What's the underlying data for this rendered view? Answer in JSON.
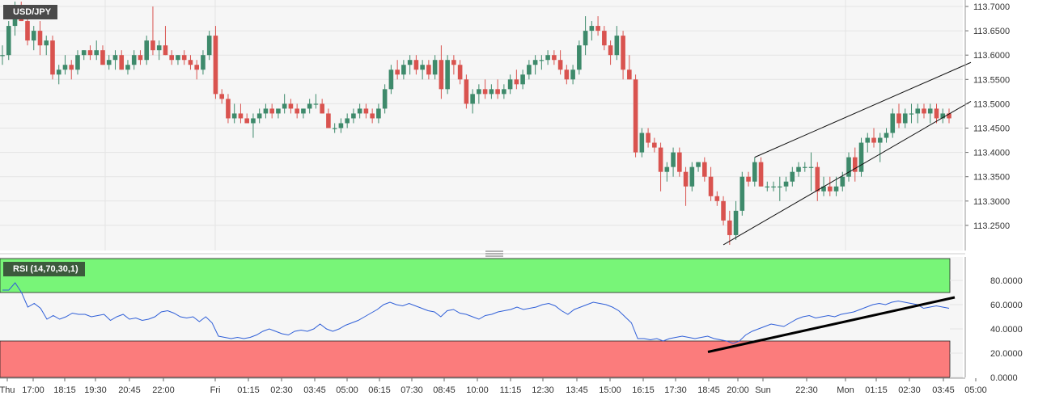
{
  "symbol": "USD/JPY",
  "rsi_label": "RSI (14,70,30,1)",
  "colors": {
    "up": "#3e8a6b",
    "down": "#d9534f",
    "rsi_line": "#2f5fd8",
    "overbought_zone": "#78f578",
    "oversold_zone": "#fb7c7c",
    "trend": "#000000",
    "grid": "#e4e4e4",
    "panel_bg": "#f6f6f6"
  },
  "chart_data": [
    {
      "type": "candlestick",
      "title": "USD/JPY",
      "ylim": [
        113.2,
        113.71
      ],
      "yticks": [
        "113.7000",
        "113.6500",
        "113.6000",
        "113.5500",
        "113.5000",
        "113.4500",
        "113.4000",
        "113.3500",
        "113.3000",
        "113.2500"
      ],
      "xticks": [
        "Thu",
        "17:00",
        "18:15",
        "19:30",
        "20:45",
        "22:00",
        "Fri",
        "01:15",
        "02:30",
        "03:45",
        "05:00",
        "06:15",
        "07:30",
        "08:45",
        "10:00",
        "11:15",
        "12:30",
        "13:45",
        "15:00",
        "16:15",
        "17:30",
        "18:45",
        "20:00",
        "Sun",
        "22:30",
        "Mon",
        "01:15",
        "02:30",
        "03:45",
        "05:00"
      ],
      "ohlc": [
        [
          113.6,
          113.62,
          113.58,
          113.6
        ],
        [
          113.6,
          113.67,
          113.59,
          113.66
        ],
        [
          113.66,
          113.71,
          113.64,
          113.7
        ],
        [
          113.7,
          113.71,
          113.67,
          113.67
        ],
        [
          113.67,
          113.69,
          113.62,
          113.63
        ],
        [
          113.63,
          113.66,
          113.61,
          113.65
        ],
        [
          113.65,
          113.67,
          113.6,
          113.62
        ],
        [
          113.62,
          113.64,
          113.6,
          113.63
        ],
        [
          113.63,
          113.64,
          113.55,
          113.56
        ],
        [
          113.56,
          113.58,
          113.54,
          113.57
        ],
        [
          113.57,
          113.6,
          113.56,
          113.58
        ],
        [
          113.58,
          113.59,
          113.55,
          113.57
        ],
        [
          113.57,
          113.61,
          113.56,
          113.6
        ],
        [
          113.6,
          113.61,
          113.59,
          113.61
        ],
        [
          113.61,
          113.62,
          113.59,
          113.6
        ],
        [
          113.6,
          113.63,
          113.59,
          113.61
        ],
        [
          113.61,
          113.62,
          113.58,
          113.58
        ],
        [
          113.58,
          113.6,
          113.57,
          113.59
        ],
        [
          113.59,
          113.61,
          113.57,
          113.6
        ],
        [
          113.6,
          113.61,
          113.57,
          113.57
        ],
        [
          113.57,
          113.59,
          113.56,
          113.58
        ],
        [
          113.58,
          113.61,
          113.57,
          113.6
        ],
        [
          113.6,
          113.61,
          113.58,
          113.59
        ],
        [
          113.59,
          113.64,
          113.58,
          113.63
        ],
        [
          113.63,
          113.7,
          113.6,
          113.61
        ],
        [
          113.61,
          113.63,
          113.59,
          113.62
        ],
        [
          113.62,
          113.66,
          113.6,
          113.6
        ],
        [
          113.6,
          113.61,
          113.58,
          113.59
        ],
        [
          113.59,
          113.6,
          113.58,
          113.6
        ],
        [
          113.6,
          113.61,
          113.58,
          113.59
        ],
        [
          113.59,
          113.6,
          113.57,
          113.58
        ],
        [
          113.58,
          113.59,
          113.55,
          113.57
        ],
        [
          113.57,
          113.61,
          113.56,
          113.6
        ],
        [
          113.6,
          113.65,
          113.59,
          113.64
        ],
        [
          113.64,
          113.66,
          113.51,
          113.52
        ],
        [
          113.52,
          113.53,
          113.5,
          113.51
        ],
        [
          113.51,
          113.52,
          113.46,
          113.47
        ],
        [
          113.47,
          113.5,
          113.46,
          113.48
        ],
        [
          113.48,
          113.5,
          113.46,
          113.47
        ],
        [
          113.47,
          113.48,
          113.46,
          113.46
        ],
        [
          113.46,
          113.48,
          113.43,
          113.47
        ],
        [
          113.47,
          113.49,
          113.46,
          113.48
        ],
        [
          113.48,
          113.5,
          113.47,
          113.49
        ],
        [
          113.49,
          113.5,
          113.47,
          113.48
        ],
        [
          113.48,
          113.49,
          113.47,
          113.49
        ],
        [
          113.49,
          113.52,
          113.48,
          113.5
        ],
        [
          113.5,
          113.51,
          113.48,
          113.49
        ],
        [
          113.49,
          113.5,
          113.47,
          113.48
        ],
        [
          113.48,
          113.49,
          113.47,
          113.49
        ],
        [
          113.49,
          113.51,
          113.48,
          113.5
        ],
        [
          113.5,
          113.52,
          113.49,
          113.5
        ],
        [
          113.5,
          113.51,
          113.48,
          113.48
        ],
        [
          113.48,
          113.49,
          113.45,
          113.45
        ],
        [
          113.45,
          113.46,
          113.44,
          113.45
        ],
        [
          113.45,
          113.47,
          113.44,
          113.46
        ],
        [
          113.46,
          113.48,
          113.45,
          113.47
        ],
        [
          113.47,
          113.49,
          113.46,
          113.48
        ],
        [
          113.48,
          113.5,
          113.47,
          113.49
        ],
        [
          113.49,
          113.5,
          113.47,
          113.48
        ],
        [
          113.48,
          113.49,
          113.46,
          113.47
        ],
        [
          113.47,
          113.5,
          113.46,
          113.49
        ],
        [
          113.49,
          113.54,
          113.48,
          113.53
        ],
        [
          113.53,
          113.58,
          113.52,
          113.57
        ],
        [
          113.57,
          113.59,
          113.55,
          113.56
        ],
        [
          113.56,
          113.59,
          113.55,
          113.58
        ],
        [
          113.58,
          113.6,
          113.56,
          113.59
        ],
        [
          113.59,
          113.6,
          113.56,
          113.57
        ],
        [
          113.57,
          113.59,
          113.55,
          113.58
        ],
        [
          113.58,
          113.59,
          113.55,
          113.56
        ],
        [
          113.56,
          113.6,
          113.55,
          113.59
        ],
        [
          113.59,
          113.62,
          113.51,
          113.53
        ],
        [
          113.53,
          113.6,
          113.52,
          113.59
        ],
        [
          113.59,
          113.6,
          113.56,
          113.58
        ],
        [
          113.58,
          113.59,
          113.54,
          113.55
        ],
        [
          113.55,
          113.56,
          113.49,
          113.5
        ],
        [
          113.5,
          113.53,
          113.48,
          113.52
        ],
        [
          113.52,
          113.54,
          113.5,
          113.53
        ],
        [
          113.53,
          113.55,
          113.51,
          113.52
        ],
        [
          113.52,
          113.54,
          113.51,
          113.53
        ],
        [
          113.53,
          113.55,
          113.51,
          113.52
        ],
        [
          113.52,
          113.54,
          113.51,
          113.53
        ],
        [
          113.53,
          113.56,
          113.52,
          113.55
        ],
        [
          113.55,
          113.57,
          113.53,
          113.54
        ],
        [
          113.54,
          113.57,
          113.53,
          113.56
        ],
        [
          113.56,
          113.59,
          113.55,
          113.58
        ],
        [
          113.58,
          113.6,
          113.56,
          113.59
        ],
        [
          113.59,
          113.6,
          113.57,
          113.59
        ],
        [
          113.59,
          113.61,
          113.58,
          113.6
        ],
        [
          113.6,
          113.61,
          113.58,
          113.59
        ],
        [
          113.59,
          113.61,
          113.56,
          113.57
        ],
        [
          113.57,
          113.58,
          113.54,
          113.55
        ],
        [
          113.55,
          113.58,
          113.54,
          113.57
        ],
        [
          113.57,
          113.63,
          113.56,
          113.62
        ],
        [
          113.62,
          113.68,
          113.6,
          113.65
        ],
        [
          113.65,
          113.67,
          113.63,
          113.66
        ],
        [
          113.66,
          113.68,
          113.64,
          113.65
        ],
        [
          113.65,
          113.66,
          113.61,
          113.62
        ],
        [
          113.62,
          113.63,
          113.58,
          113.6
        ],
        [
          113.6,
          113.66,
          113.59,
          113.64
        ],
        [
          113.64,
          113.65,
          113.55,
          113.57
        ],
        [
          113.57,
          113.6,
          113.55,
          113.55
        ],
        [
          113.55,
          113.56,
          113.39,
          113.4
        ],
        [
          113.4,
          113.45,
          113.39,
          113.44
        ],
        [
          113.44,
          113.45,
          113.41,
          113.42
        ],
        [
          113.42,
          113.43,
          113.4,
          113.41
        ],
        [
          113.41,
          113.42,
          113.32,
          113.36
        ],
        [
          113.36,
          113.38,
          113.34,
          113.37
        ],
        [
          113.37,
          113.41,
          113.35,
          113.4
        ],
        [
          113.4,
          113.41,
          113.35,
          113.36
        ],
        [
          113.36,
          113.37,
          113.29,
          113.33
        ],
        [
          113.33,
          113.38,
          113.32,
          113.37
        ],
        [
          113.37,
          113.38,
          113.36,
          113.38
        ],
        [
          113.38,
          113.39,
          113.34,
          113.35
        ],
        [
          113.35,
          113.37,
          113.3,
          113.31
        ],
        [
          113.31,
          113.32,
          113.29,
          113.3
        ],
        [
          113.3,
          113.31,
          113.25,
          113.26
        ],
        [
          113.26,
          113.28,
          113.21,
          113.23
        ],
        [
          113.23,
          113.3,
          113.22,
          113.28
        ],
        [
          113.28,
          113.36,
          113.27,
          113.35
        ],
        [
          113.35,
          113.36,
          113.33,
          113.34
        ],
        [
          113.34,
          113.39,
          113.33,
          113.38
        ],
        [
          113.38,
          113.39,
          113.33,
          113.33
        ],
        [
          113.33,
          113.34,
          113.32,
          113.33
        ],
        [
          113.33,
          113.34,
          113.32,
          113.33
        ],
        [
          113.33,
          113.35,
          113.3,
          113.33
        ],
        [
          113.33,
          113.35,
          113.32,
          113.34
        ],
        [
          113.34,
          113.37,
          113.33,
          113.36
        ],
        [
          113.36,
          113.38,
          113.35,
          113.37
        ],
        [
          113.37,
          113.38,
          113.36,
          113.37
        ],
        [
          113.37,
          113.4,
          113.32,
          113.37
        ],
        [
          113.37,
          113.38,
          113.3,
          113.32
        ],
        [
          113.32,
          113.35,
          113.31,
          113.33
        ],
        [
          113.33,
          113.35,
          113.31,
          113.32
        ],
        [
          113.32,
          113.35,
          113.31,
          113.33
        ],
        [
          113.33,
          113.36,
          113.32,
          113.35
        ],
        [
          113.35,
          113.4,
          113.34,
          113.39
        ],
        [
          113.39,
          113.41,
          113.34,
          113.36
        ],
        [
          113.36,
          113.43,
          113.35,
          113.42
        ],
        [
          113.42,
          113.44,
          113.4,
          113.43
        ],
        [
          113.43,
          113.45,
          113.41,
          113.42
        ],
        [
          113.42,
          113.44,
          113.38,
          113.43
        ],
        [
          113.43,
          113.45,
          113.42,
          113.44
        ],
        [
          113.44,
          113.49,
          113.43,
          113.48
        ],
        [
          113.48,
          113.5,
          113.45,
          113.46
        ],
        [
          113.46,
          113.49,
          113.45,
          113.48
        ],
        [
          113.48,
          113.5,
          113.46,
          113.48
        ],
        [
          113.48,
          113.5,
          113.46,
          113.49
        ],
        [
          113.49,
          113.5,
          113.47,
          113.48
        ],
        [
          113.48,
          113.5,
          113.46,
          113.49
        ],
        [
          113.49,
          113.5,
          113.46,
          113.47
        ],
        [
          113.47,
          113.49,
          113.46,
          113.48
        ],
        [
          113.48,
          113.49,
          113.46,
          113.47
        ]
      ],
      "annotations": "rising wedge: upper and lower trendlines drawn from the swing low"
    },
    {
      "type": "line",
      "title": "RSI (14,70,30,1)",
      "ylim": [
        0,
        100
      ],
      "yticks": [
        "80.0000",
        "60.0000",
        "40.0000",
        "20.0000",
        "0.0000"
      ],
      "bands": {
        "overbought": 70,
        "oversold": 30
      },
      "series": [
        {
          "values": [
            72,
            72,
            78,
            70,
            58,
            61,
            57,
            48,
            51,
            48,
            50,
            53,
            52,
            52,
            50,
            51,
            52,
            47,
            50,
            52,
            48,
            49,
            47,
            48,
            50,
            54,
            55,
            53,
            50,
            49,
            50,
            46,
            50,
            45,
            34,
            33,
            32,
            33,
            32,
            33,
            35,
            38,
            40,
            38,
            36,
            35,
            38,
            39,
            38,
            40,
            44,
            40,
            38,
            40,
            43,
            45,
            47,
            50,
            53,
            56,
            60,
            62,
            60,
            59,
            61,
            59,
            57,
            55,
            54,
            50,
            55,
            56,
            53,
            52,
            50,
            48,
            51,
            52,
            54,
            55,
            56,
            58,
            56,
            57,
            58,
            60,
            61,
            59,
            55,
            52,
            56,
            58,
            60,
            62,
            61,
            60,
            58,
            55,
            50,
            45,
            32,
            32,
            31,
            32,
            30,
            32,
            33,
            34,
            33,
            32,
            33,
            34,
            32,
            31,
            30,
            28,
            30,
            35,
            38,
            40,
            42,
            44,
            43,
            42,
            45,
            48,
            50,
            51,
            49,
            50,
            51,
            50,
            52,
            53,
            54,
            56,
            58,
            60,
            61,
            60,
            62,
            63,
            62,
            61,
            60,
            57,
            58,
            59,
            58,
            57
          ]
        }
      ]
    }
  ]
}
